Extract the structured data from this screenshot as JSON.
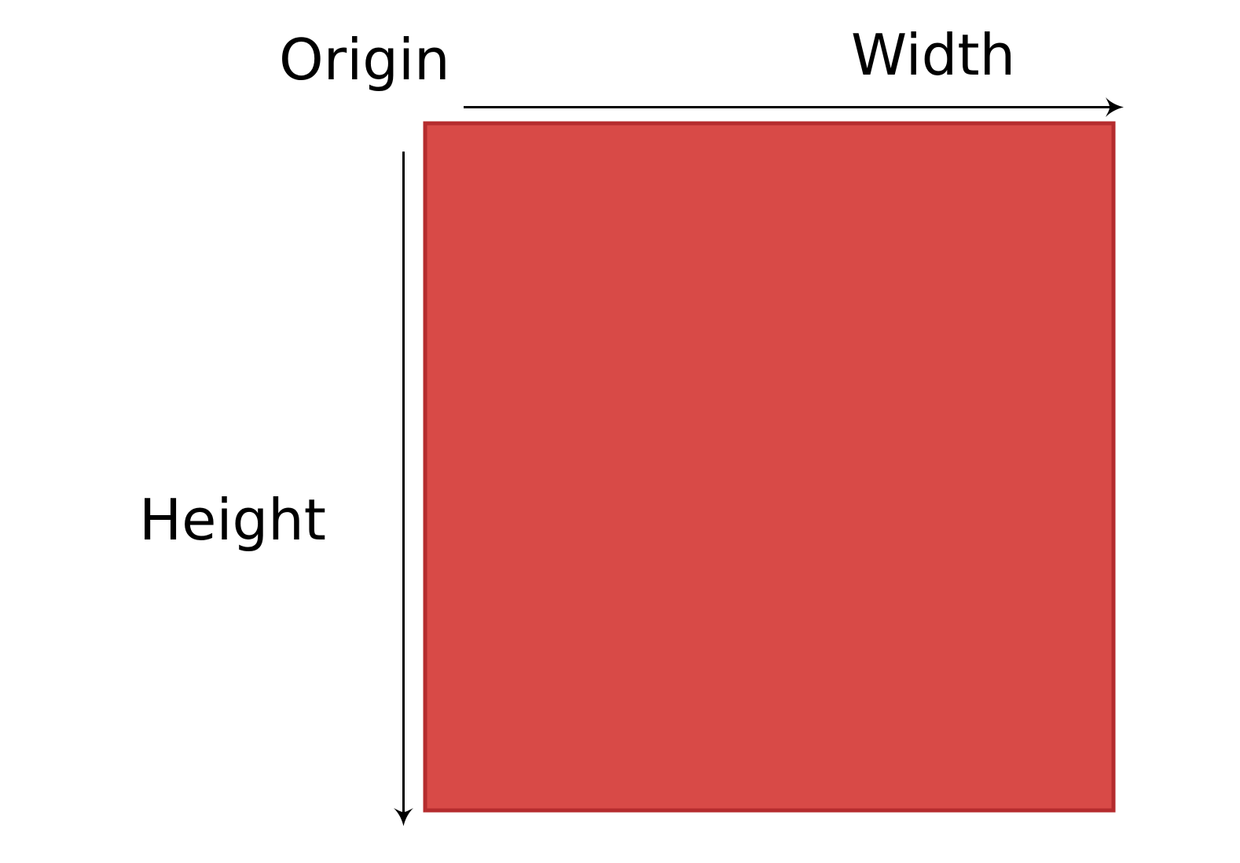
{
  "labels": {
    "origin": "Origin",
    "width": "Width",
    "height": "Height"
  },
  "colors": {
    "rect_fill": "#d84a47",
    "rect_border": "#b52c2e",
    "arrow": "#000000",
    "text": "#000000",
    "background": "#ffffff"
  }
}
